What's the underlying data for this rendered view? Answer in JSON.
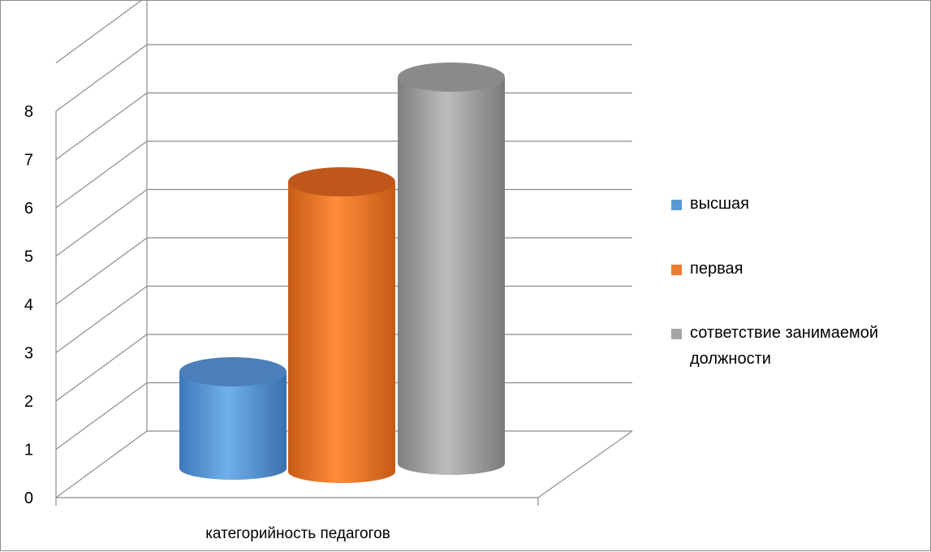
{
  "chart_data": {
    "type": "bar",
    "style": "3d-cylinder",
    "categories": [
      "категорийность педагогов"
    ],
    "series": [
      {
        "name": "высшая",
        "values": [
          2
        ],
        "color": "#5B9BD5"
      },
      {
        "name": "первая",
        "values": [
          6
        ],
        "color": "#ED7D31"
      },
      {
        "name": "сответствие занимаемой должности",
        "values": [
          8
        ],
        "color": "#A5A5A5"
      }
    ],
    "y_ticks": [
      "0",
      "1",
      "2",
      "3",
      "4",
      "5",
      "6",
      "7",
      "8"
    ],
    "ylim": [
      0,
      8
    ],
    "grid": true,
    "legend_position": "right"
  }
}
